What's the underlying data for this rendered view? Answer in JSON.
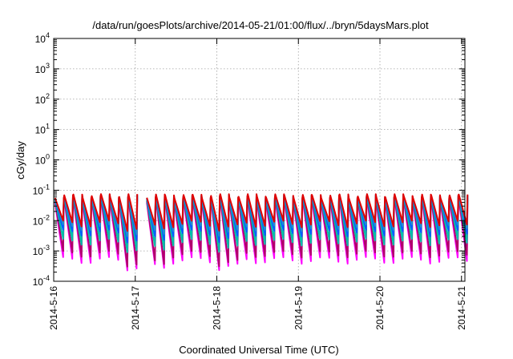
{
  "chart_data": {
    "type": "line",
    "title": "/data/run/goesPlots/archive/2014-05-21/01:00/flux/../bryn/5daysMars.plot",
    "xlabel": "Coordinated Universal Time (UTC)",
    "ylabel": "cGy/day",
    "yscale": "log",
    "ylim": [
      0.0001,
      10000
    ],
    "xlim": [
      "2014-05-16T00:00",
      "2014-05-21T01:00"
    ],
    "x_ticks": [
      "2014-5-16",
      "2014-5-17",
      "2014-5-18",
      "2014-5-19",
      "2014-5-20",
      "2014-5-21"
    ],
    "y_ticks": [
      {
        "base": "10",
        "exp": "-4"
      },
      {
        "base": "10",
        "exp": "-3"
      },
      {
        "base": "10",
        "exp": "-2"
      },
      {
        "base": "10",
        "exp": "-1"
      },
      {
        "base": "10",
        "exp": "0"
      },
      {
        "base": "10",
        "exp": "1"
      },
      {
        "base": "10",
        "exp": "2"
      },
      {
        "base": "10",
        "exp": "3"
      },
      {
        "base": "10",
        "exp": "4"
      }
    ],
    "grid": true,
    "legend": "none",
    "pattern": "sawtooth",
    "tooth_period_hours": 2.7,
    "gap_near": "2014-05-17T00:30",
    "series": [
      {
        "color": "#ff00ff",
        "peak": 0.045,
        "trough_day1": 0.0003,
        "trough_typical": 0.0005
      },
      {
        "color": "#b0006a",
        "peak": 0.05,
        "trough_day1": 0.0004,
        "trough_typical": 0.0008
      },
      {
        "color": "#00c0a8",
        "peak": 0.055,
        "trough_day1": 0.0012,
        "trough_typical": 0.002
      },
      {
        "color": "#0060ff",
        "peak": 0.06,
        "trough_day1": 0.0025,
        "trough_typical": 0.004
      },
      {
        "color": "#2090d0",
        "peak": 0.062,
        "trough_day1": 0.004,
        "trough_typical": 0.006
      },
      {
        "color": "#e00000",
        "peak": 0.065,
        "trough_day1": 0.006,
        "trough_typical": 0.008
      }
    ]
  }
}
